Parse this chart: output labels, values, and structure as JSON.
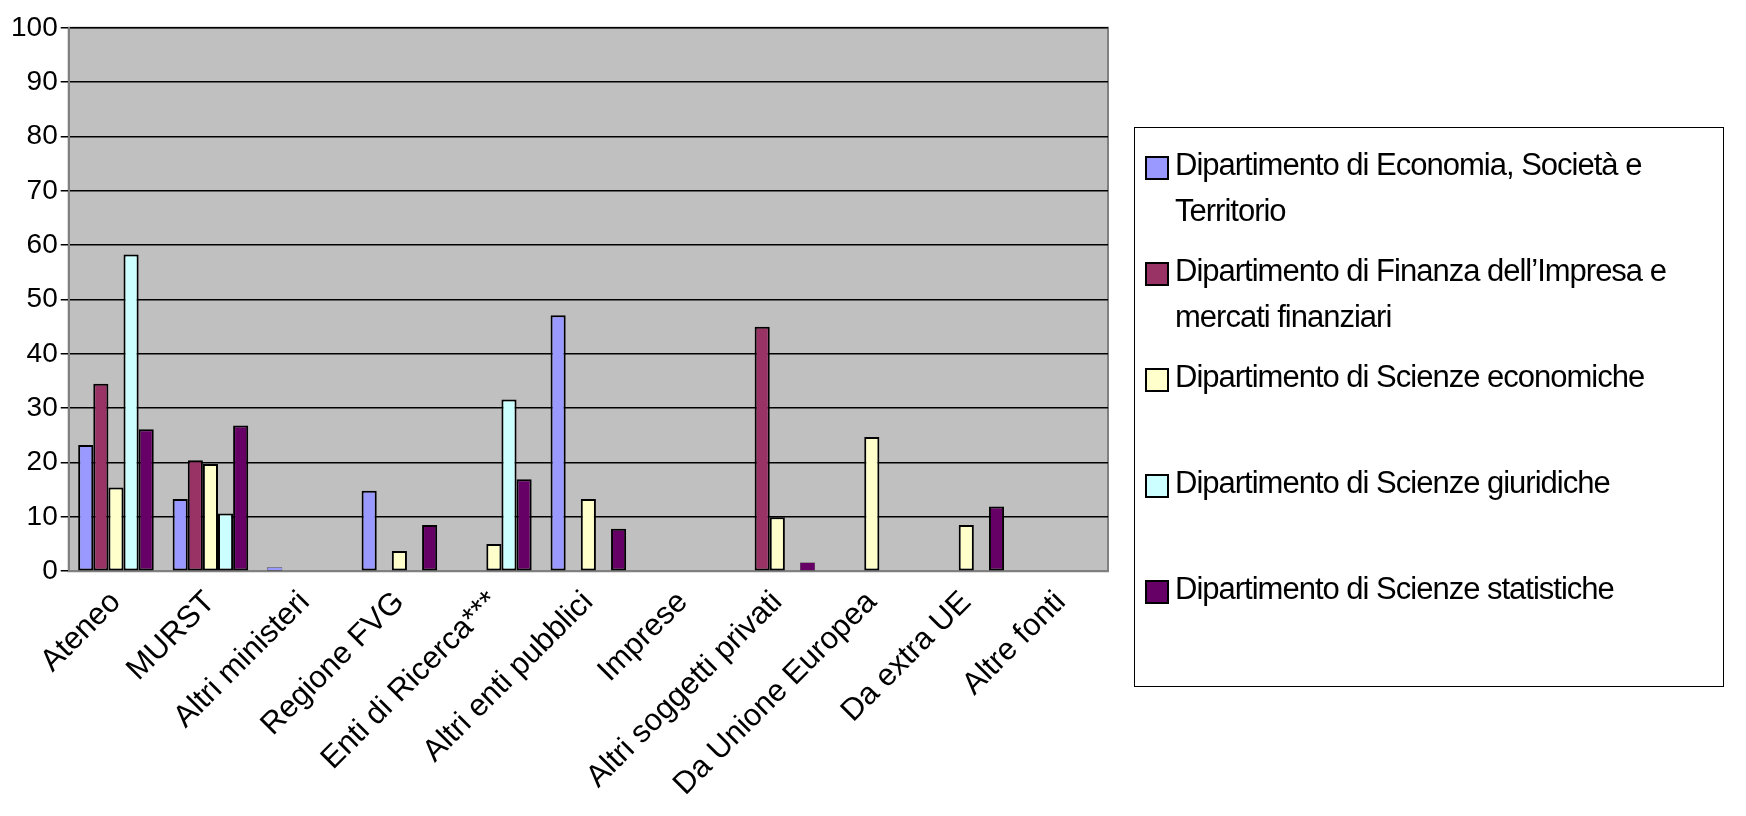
{
  "chart_data": {
    "type": "bar",
    "categories": [
      "Ateneo",
      "MURST",
      "Altri ministeri",
      "Regione FVG",
      "Enti di Ricerca***",
      "Altri enti pubblici",
      "Imprese",
      "Altri soggetti privati",
      "Da Unione Europea",
      "Da extra UE",
      "Altre fonti"
    ],
    "series": [
      {
        "name": "Dipartimento di Economia, Società e Territorio",
        "color": "#9999ff",
        "values": [
          23.2,
          13.3,
          0.7,
          14.8,
          0,
          47.1,
          0,
          0,
          0,
          0,
          0
        ]
      },
      {
        "name": "Dipartimento di Finanza dell’Impresa e mercati finanziari",
        "color": "#993366",
        "values": [
          34.5,
          20.4,
          0,
          0,
          0,
          0,
          0,
          45.0,
          0,
          0,
          0
        ]
      },
      {
        "name": "Dipartimento di Scienze economiche",
        "color": "#ffffcc",
        "values": [
          15.4,
          19.7,
          0,
          3.7,
          5.0,
          13.3,
          0,
          9.9,
          24.7,
          8.5,
          0
        ]
      },
      {
        "name": "Dipartimento di Scienze giuridiche",
        "color": "#ccffff",
        "values": [
          58.3,
          10.6,
          0,
          0,
          31.6,
          0,
          0,
          0,
          0,
          0,
          0
        ]
      },
      {
        "name": "Dipartimento di Scienze statistiche",
        "color": "#660066",
        "values": [
          26.1,
          26.8,
          0,
          8.5,
          16.9,
          7.8,
          0,
          1.6,
          0,
          11.9,
          0
        ]
      }
    ],
    "ylim": [
      0,
      100
    ],
    "yticks": [
      0,
      10,
      20,
      30,
      40,
      50,
      60,
      70,
      80,
      90,
      100
    ],
    "grid": "y",
    "legend": "right"
  }
}
